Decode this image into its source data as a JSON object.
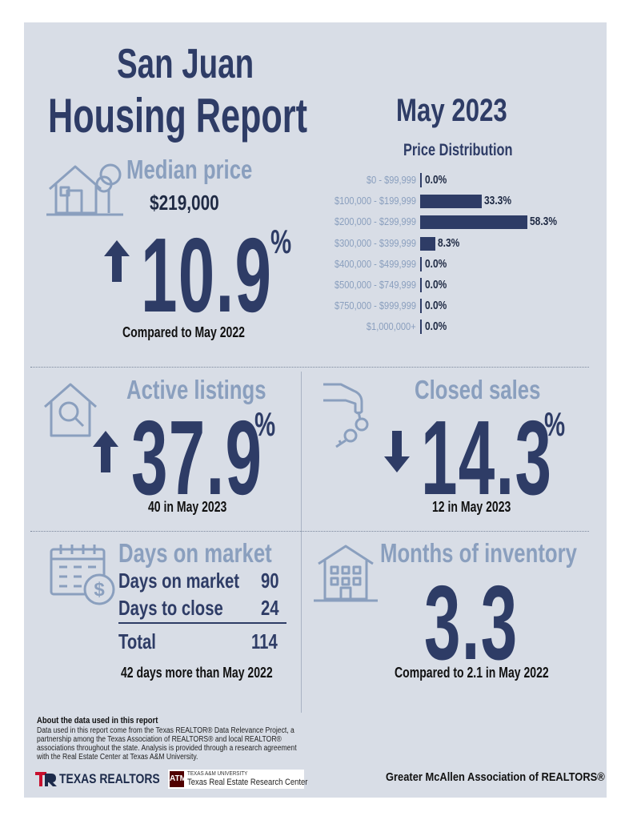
{
  "header": {
    "city": "San Juan",
    "title": "Housing Report",
    "month": "May 2023"
  },
  "median": {
    "label": "Median price",
    "price": "$219,000",
    "direction": "up",
    "change": "10.9",
    "pct_sign": "%",
    "caption": "Compared to May 2022"
  },
  "chart_data": {
    "type": "bar",
    "orientation": "horizontal",
    "title": "Price Distribution",
    "categories": [
      "$0 - $99,999",
      "$100,000 - $199,999",
      "$200,000 - $299,999",
      "$300,000 - $399,999",
      "$400,000 - $499,999",
      "$500,000 - $749,999",
      "$750,000 - $999,999",
      "$1,000,000+"
    ],
    "values": [
      0.0,
      33.3,
      58.3,
      8.3,
      0.0,
      0.0,
      0.0,
      0.0
    ],
    "value_labels": [
      "0.0%",
      "33.3%",
      "58.3%",
      "8.3%",
      "0.0%",
      "0.0%",
      "0.0%",
      "0.0%"
    ],
    "color": "#2e3c66"
  },
  "active": {
    "label": "Active listings",
    "direction": "up",
    "change": "37.9",
    "pct_sign": "%",
    "caption": "40 in May 2023"
  },
  "closed": {
    "label": "Closed sales",
    "direction": "down",
    "change": "14.3",
    "pct_sign": "%",
    "caption": "12 in May 2023"
  },
  "days": {
    "label": "Days on market",
    "rows": [
      {
        "label": "Days on market",
        "value": "90"
      },
      {
        "label": "Days to close",
        "value": "24"
      }
    ],
    "total_label": "Total",
    "total_value": "114",
    "caption": "42 days more than May 2022"
  },
  "inventory": {
    "label": "Months of inventory",
    "value": "3.3",
    "caption": "Compared to 2.1 in May 2022"
  },
  "footer": {
    "about_heading": "About the data used in this report",
    "about_text": "Data used in this report come from the Texas REALTOR® Data Relevance Project, a partnership among the Texas Association of REALTORS® and local REALTOR® associations throughout the state. Analysis is provided through a research agreement with the Real Estate Center at Texas A&M University.",
    "logo1": "TEXAS REALTORS",
    "logo2_mark": "ATM",
    "logo2_small": "TEXAS A&M UNIVERSITY",
    "logo2_main": "Texas Real Estate Research Center",
    "association": "Greater McAllen Association of REALTORS®"
  },
  "colors": {
    "navy": "#2e3c66",
    "muted_blue": "#8a9fbe",
    "background": "#d8dde6"
  }
}
